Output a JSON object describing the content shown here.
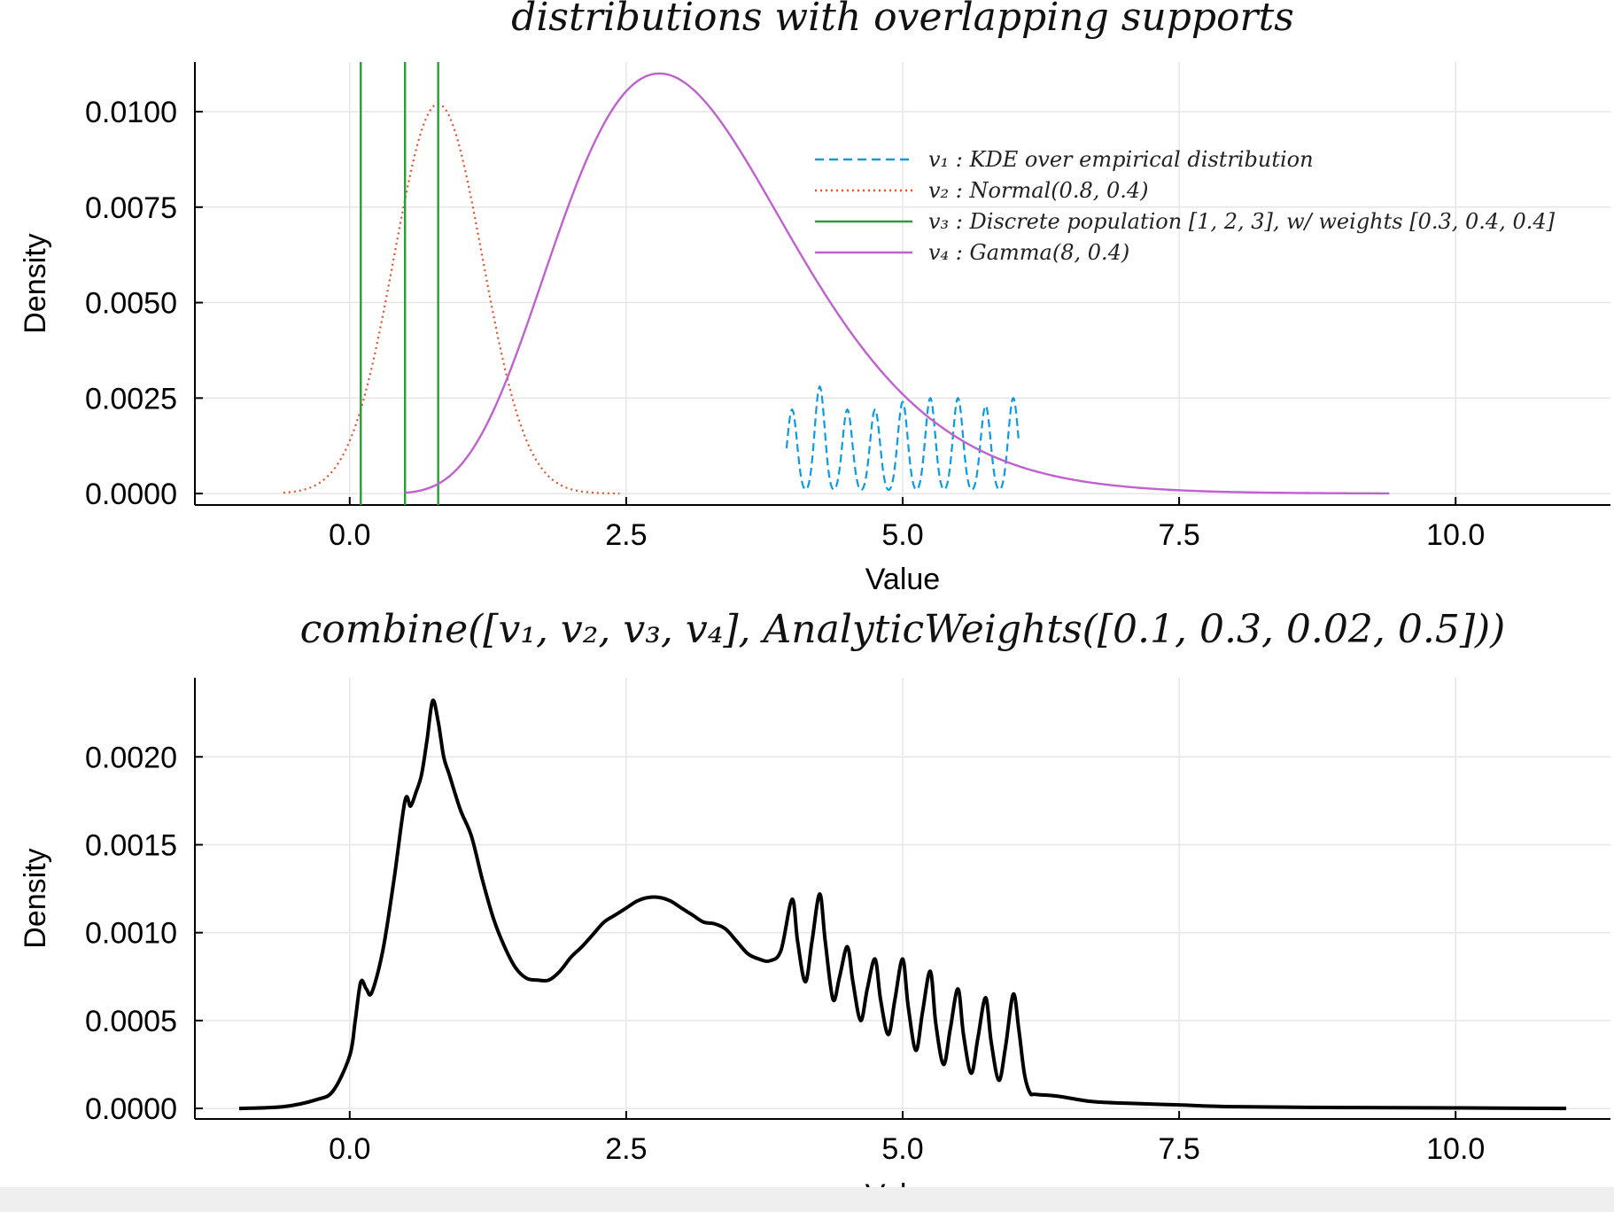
{
  "chart_data": [
    {
      "type": "line",
      "title": "distributions with overlapping supports",
      "xlabel": "Value",
      "ylabel": "Density",
      "xlim": [
        -1.4,
        11.4
      ],
      "ylim": [
        -0.0003,
        0.0113
      ],
      "xticks": [
        0.0,
        2.5,
        5.0,
        7.5,
        10.0
      ],
      "xtick_labels": [
        "0.0",
        "2.5",
        "5.0",
        "7.5",
        "10.0"
      ],
      "yticks": [
        0.0,
        0.0025,
        0.005,
        0.0075,
        0.01
      ],
      "ytick_labels": [
        "0.0000",
        "0.0025",
        "0.0050",
        "0.0075",
        "0.0100"
      ],
      "grid": true,
      "legend_position": "top-right",
      "series": [
        {
          "name": "v₁ : KDE over empirical distribution",
          "style": "dashed",
          "color": "#0b9ae6",
          "kind": "kde_spikes",
          "peaks_x": [
            4.0,
            4.25,
            4.5,
            4.75,
            5.0,
            5.25,
            5.5,
            5.75,
            6.0
          ],
          "peaks_y": [
            0.0022,
            0.0028,
            0.0022,
            0.0022,
            0.0024,
            0.0025,
            0.0025,
            0.0023,
            0.0025
          ],
          "x_range": [
            3.95,
            6.05
          ]
        },
        {
          "name": "v₂ : Normal(0.8, 0.4)",
          "style": "dotted",
          "color": "#e2502a",
          "kind": "normal",
          "params": {
            "mean": 0.8,
            "sd": 0.4,
            "peak": 0.0102
          },
          "x_range": [
            -0.6,
            2.45
          ]
        },
        {
          "name": "v₃ : Discrete population [1, 2, 3], w/ weights [0.3, 0.4, 0.4]",
          "style": "solid",
          "color": "#2e9a3a",
          "kind": "vlines",
          "x": [
            0.1,
            0.5,
            0.8
          ]
        },
        {
          "name": "v₄ : Gamma(8, 0.4)",
          "style": "solid",
          "color": "#c061d0",
          "kind": "gamma",
          "params": {
            "shape": 8,
            "scale": 0.4,
            "peak": 0.011
          },
          "x_range": [
            0.5,
            9.4
          ]
        }
      ]
    },
    {
      "type": "line",
      "title": "combine([v₁, v₂, v₃, v₄], AnalyticWeights([0.1, 0.3, 0.02, 0.5]))",
      "xlabel": "Value",
      "ylabel": "Density",
      "xlim": [
        -1.4,
        11.4
      ],
      "ylim": [
        -6e-05,
        0.00245
      ],
      "xticks": [
        0.0,
        2.5,
        5.0,
        7.5,
        10.0
      ],
      "xtick_labels": [
        "0.0",
        "2.5",
        "5.0",
        "7.5",
        "10.0"
      ],
      "yticks": [
        0.0,
        0.0005,
        0.001,
        0.0015,
        0.002
      ],
      "ytick_labels": [
        "0.0000",
        "0.0005",
        "0.0010",
        "0.0015",
        "0.0020"
      ],
      "grid": true,
      "series": [
        {
          "name": "",
          "color": "#000000",
          "x": [
            -1.0,
            -0.6,
            -0.3,
            -0.15,
            0.0,
            0.05,
            0.1,
            0.15,
            0.2,
            0.3,
            0.4,
            0.5,
            0.55,
            0.6,
            0.65,
            0.7,
            0.75,
            0.8,
            0.85,
            0.9,
            1.0,
            1.1,
            1.2,
            1.3,
            1.4,
            1.5,
            1.6,
            1.7,
            1.8,
            1.9,
            2.0,
            2.1,
            2.2,
            2.3,
            2.4,
            2.5,
            2.6,
            2.7,
            2.8,
            2.9,
            3.0,
            3.1,
            3.2,
            3.3,
            3.4,
            3.5,
            3.6,
            3.7,
            3.8,
            3.9,
            4.0,
            4.05,
            4.12,
            4.18,
            4.25,
            4.3,
            4.37,
            4.43,
            4.5,
            4.55,
            4.62,
            4.68,
            4.75,
            4.8,
            4.87,
            4.93,
            5.0,
            5.05,
            5.12,
            5.18,
            5.25,
            5.3,
            5.37,
            5.43,
            5.5,
            5.55,
            5.62,
            5.68,
            5.75,
            5.8,
            5.87,
            5.93,
            6.0,
            6.05,
            6.1,
            6.15,
            6.2,
            6.4,
            6.7,
            7.0,
            7.5,
            8.0,
            9.0,
            10.0,
            11.0
          ],
          "y": [
            0.0,
            1e-05,
            5e-05,
            0.0001,
            0.0003,
            0.0005,
            0.00072,
            0.00068,
            0.00066,
            0.0009,
            0.0013,
            0.00175,
            0.00172,
            0.0018,
            0.0019,
            0.0021,
            0.00232,
            0.0022,
            0.002,
            0.0019,
            0.0017,
            0.00155,
            0.0013,
            0.00108,
            0.00092,
            0.0008,
            0.00074,
            0.00073,
            0.00073,
            0.00078,
            0.00086,
            0.00092,
            0.00099,
            0.00106,
            0.0011,
            0.00114,
            0.00118,
            0.0012,
            0.0012,
            0.00118,
            0.00114,
            0.0011,
            0.00106,
            0.00105,
            0.00102,
            0.00095,
            0.00088,
            0.00085,
            0.00084,
            0.0009,
            0.00119,
            0.00095,
            0.00072,
            0.00095,
            0.00122,
            0.00095,
            0.00062,
            0.00075,
            0.00092,
            0.00072,
            0.0005,
            0.00068,
            0.00085,
            0.00062,
            0.00042,
            0.00062,
            0.00085,
            0.00058,
            0.00033,
            0.00055,
            0.00078,
            0.00048,
            0.00025,
            0.00045,
            0.00068,
            0.00042,
            0.0002,
            0.0004,
            0.00063,
            0.00038,
            0.00016,
            0.00035,
            0.00065,
            0.00045,
            0.0002,
            9e-05,
            8e-05,
            7e-05,
            4e-05,
            3e-05,
            2e-05,
            1e-05,
            5e-06,
            3e-06,
            0.0
          ]
        }
      ]
    }
  ]
}
